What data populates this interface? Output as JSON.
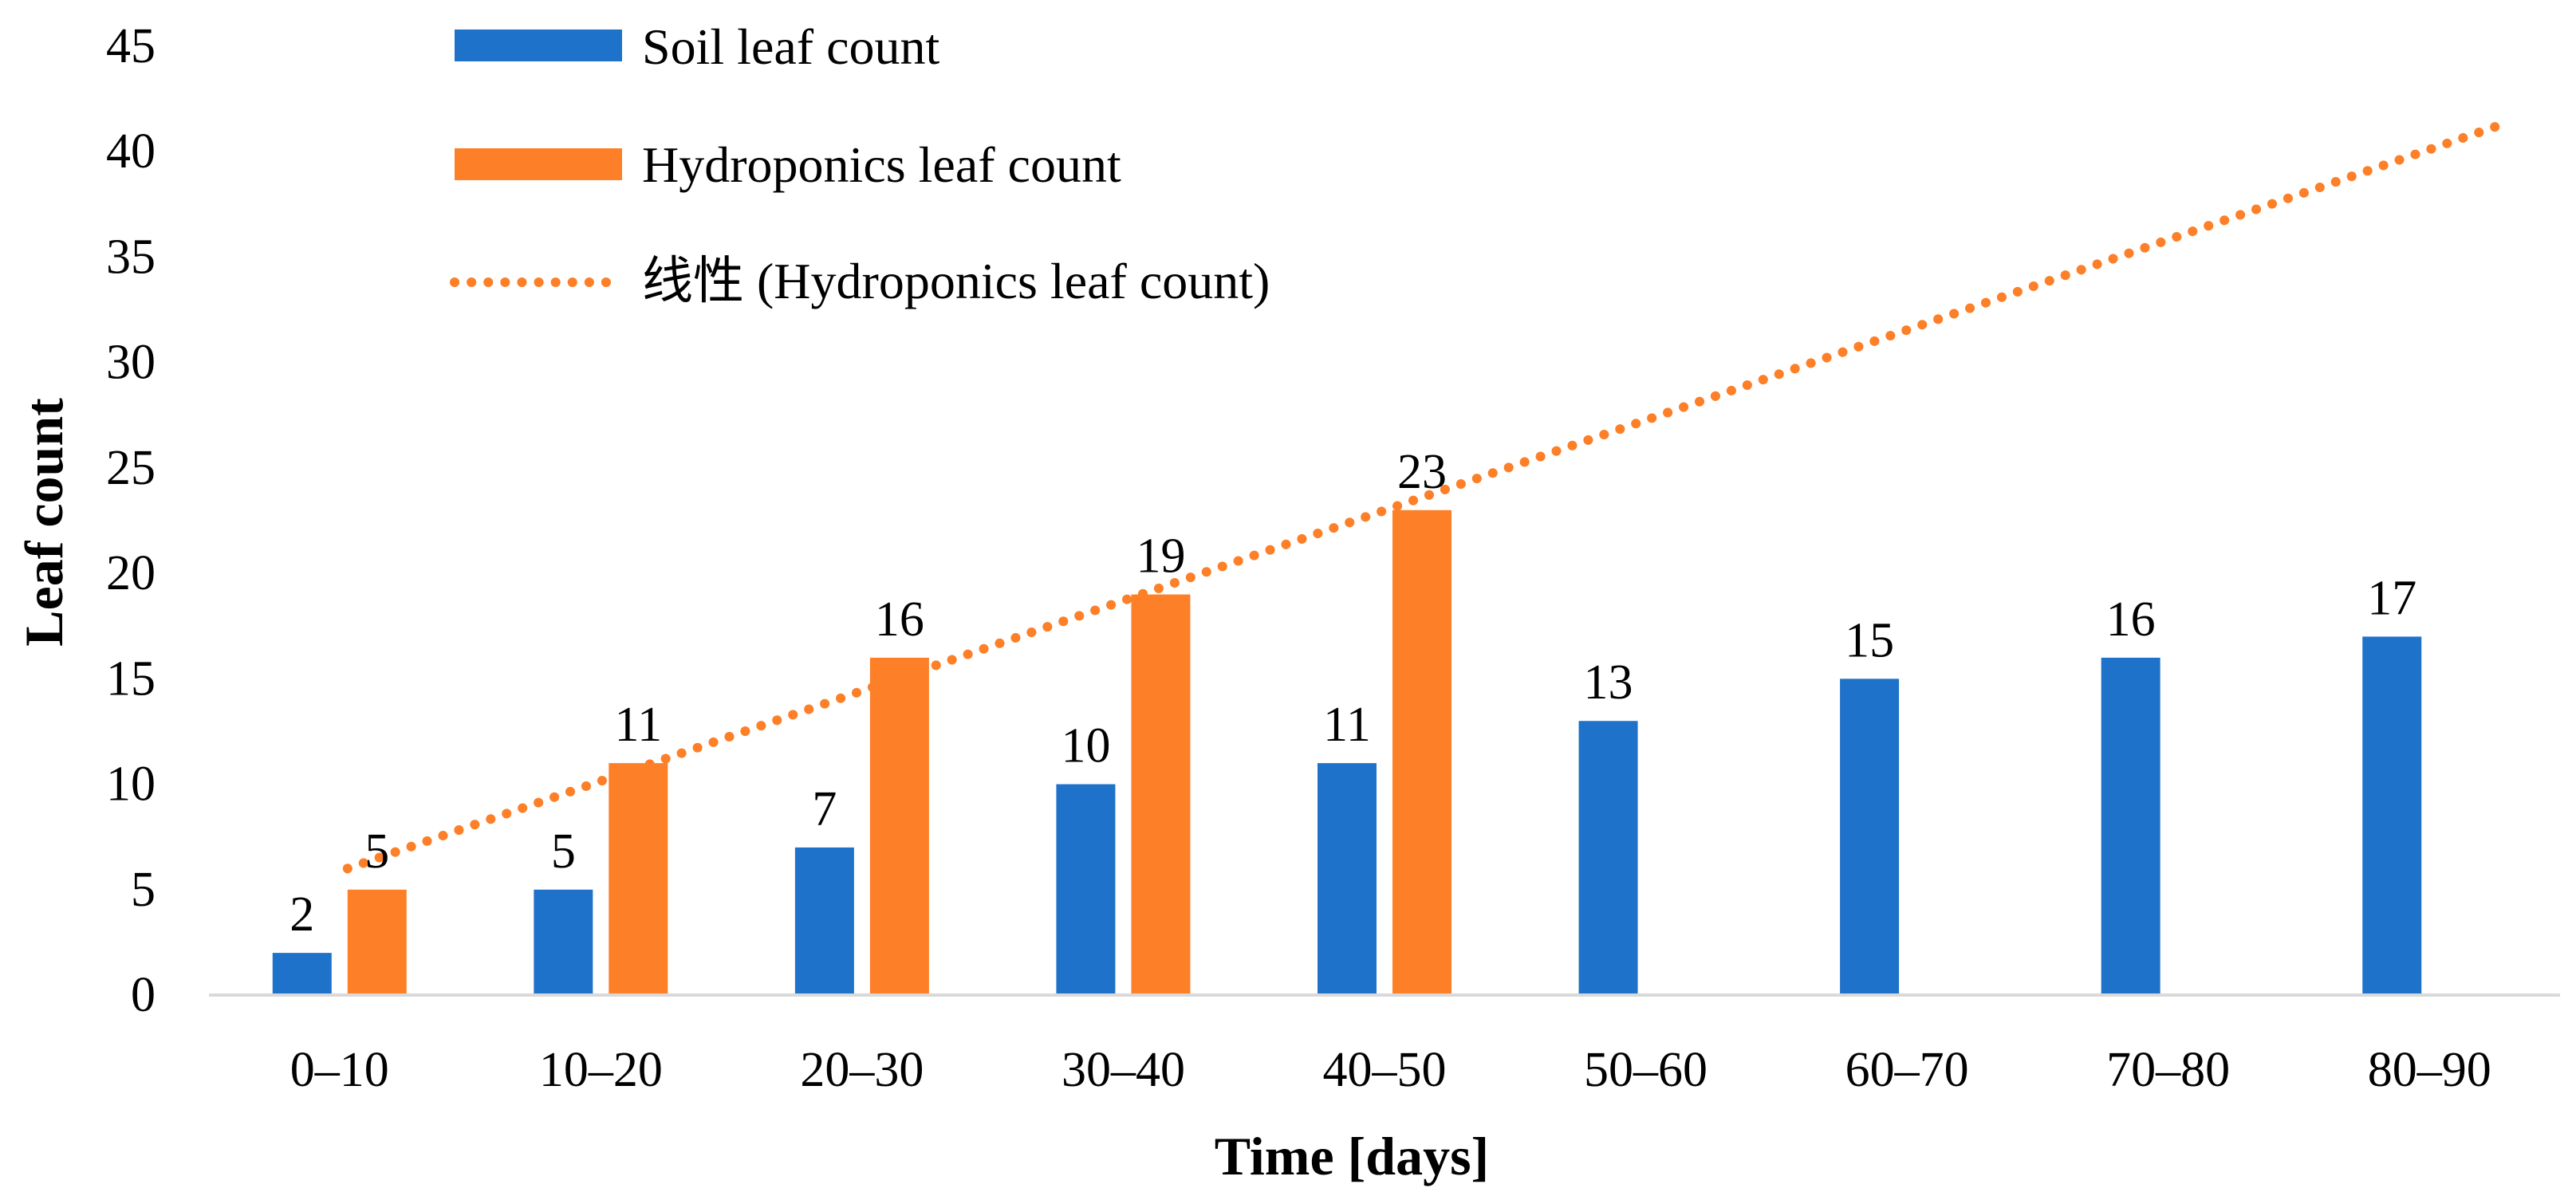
{
  "chart_data": {
    "type": "bar",
    "categories": [
      "0–10",
      "10–20",
      "20–30",
      "30–40",
      "40–50",
      "50–60",
      "60–70",
      "70–80",
      "80–90"
    ],
    "series": [
      {
        "name": "Soil leaf count",
        "values": [
          2,
          5,
          7,
          10,
          11,
          13,
          15,
          16,
          17
        ],
        "color": "#1f72c9"
      },
      {
        "name": "Hydroponics leaf count",
        "values": [
          5,
          11,
          16,
          19,
          23,
          null,
          null,
          null,
          null
        ],
        "color": "#fd7f27"
      }
    ],
    "trendline": {
      "name": "线性 (Hydroponics leaf count)",
      "kind": "linear",
      "based_on_series": "Hydroponics leaf count",
      "style": "dotted",
      "color": "#fd7f27"
    },
    "xlabel": "Time [days]",
    "ylabel": "Leaf count",
    "ylim": [
      0,
      45
    ],
    "yticks": [
      0,
      5,
      10,
      15,
      20,
      25,
      30,
      35,
      40,
      45
    ],
    "grid": false,
    "legend_position": "top-left",
    "data_labels": true
  }
}
